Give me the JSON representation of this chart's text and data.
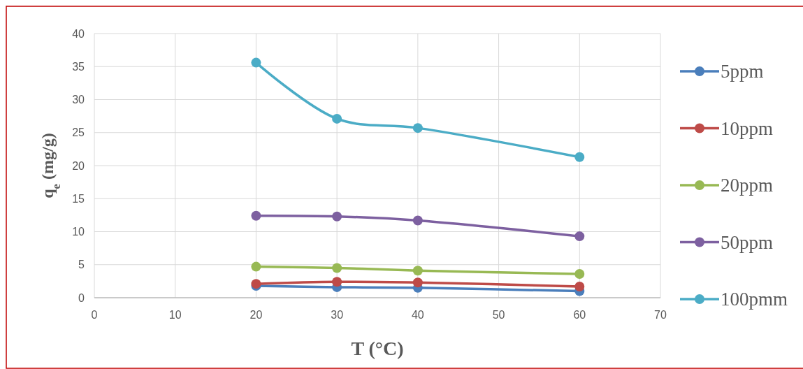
{
  "chart_data": {
    "type": "line",
    "xlabel": "T (°C)",
    "ylabel": "q$_{e}$ (mg/g)",
    "x": [
      20,
      30,
      40,
      60
    ],
    "series": [
      {
        "name": "5ppm",
        "color": "#4a7ebb",
        "values": [
          1.8,
          1.6,
          1.5,
          1.0
        ]
      },
      {
        "name": "10ppm",
        "color": "#be4b48",
        "values": [
          2.1,
          2.4,
          2.3,
          1.7
        ]
      },
      {
        "name": "20ppm",
        "color": "#98b954",
        "values": [
          4.7,
          4.5,
          4.1,
          3.6
        ]
      },
      {
        "name": "50ppm",
        "color": "#7d60a0",
        "values": [
          12.4,
          12.3,
          11.7,
          9.3
        ]
      },
      {
        "name": "100pmm",
        "color": "#4bacc6",
        "values": [
          35.6,
          27.1,
          25.7,
          21.3
        ]
      }
    ],
    "xlim": [
      0,
      70
    ],
    "xticks": [
      0,
      10,
      20,
      30,
      40,
      50,
      60,
      70
    ],
    "ylim": [
      0,
      40
    ],
    "yticks": [
      0,
      5,
      10,
      15,
      20,
      25,
      30,
      35,
      40
    ],
    "grid": true,
    "legend": "right",
    "marker": "circle",
    "line_style": "solid"
  }
}
